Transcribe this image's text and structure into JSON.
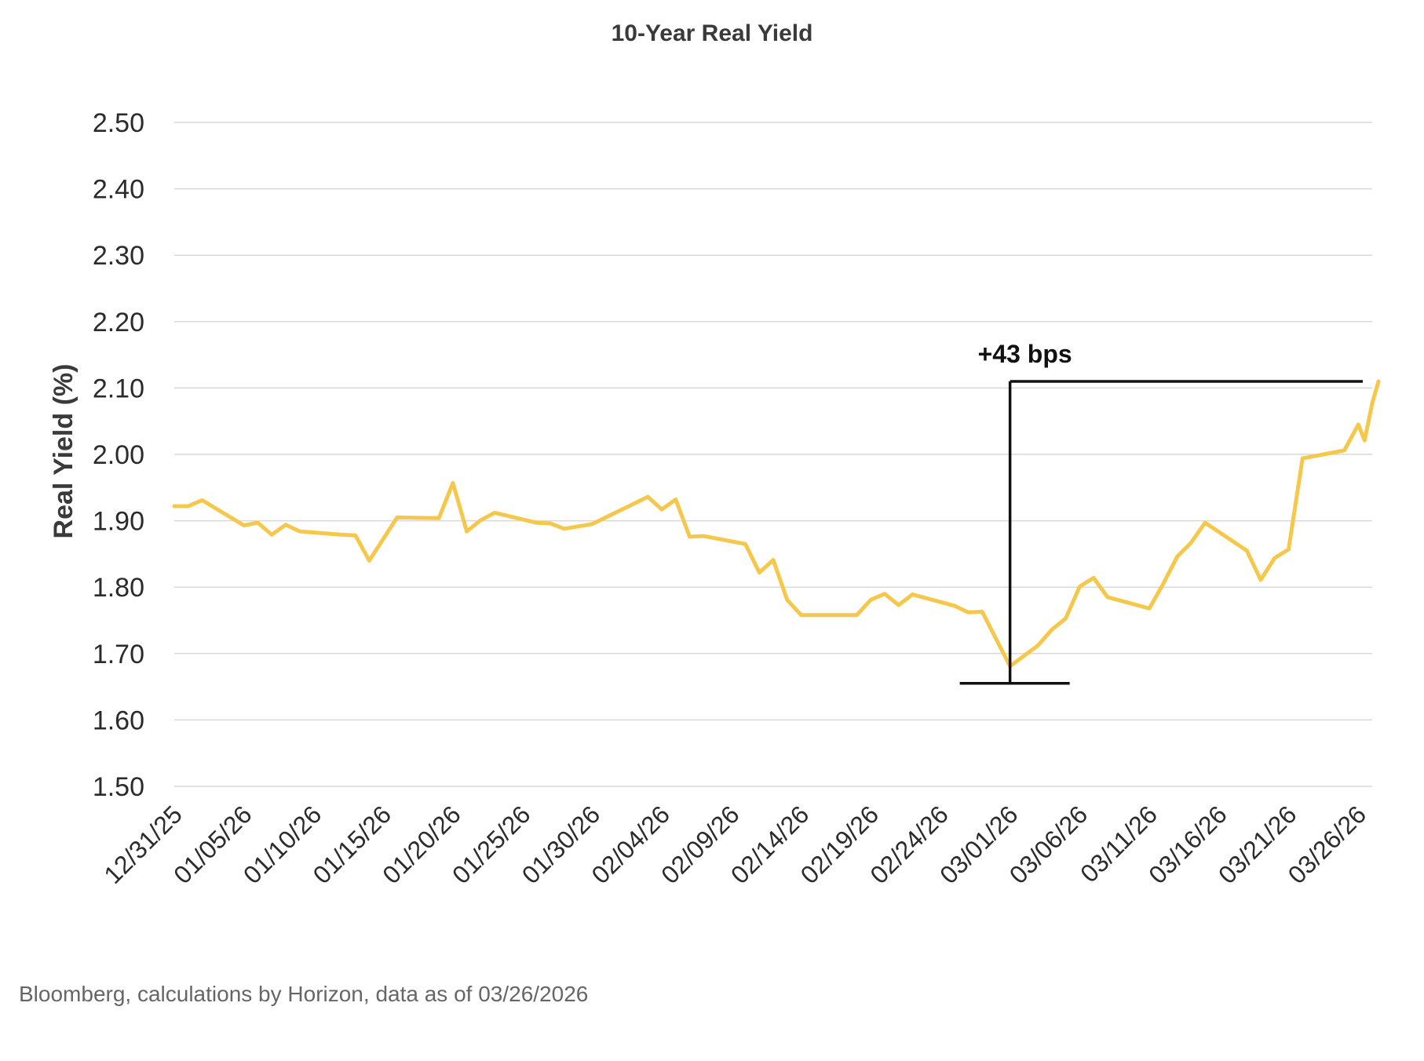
{
  "chart_data": {
    "type": "line",
    "title": "10-Year Real Yield",
    "xlabel": "",
    "ylabel": "Real Yield (%)",
    "ylim": [
      1.5,
      2.5
    ],
    "yticks": [
      "1.50",
      "1.60",
      "1.70",
      "1.80",
      "1.90",
      "2.00",
      "2.10",
      "2.20",
      "2.30",
      "2.40",
      "2.50"
    ],
    "x_tick_labels": [
      "12/31/25",
      "01/05/26",
      "01/10/26",
      "01/15/26",
      "01/20/26",
      "01/25/26",
      "01/30/26",
      "02/04/26",
      "02/09/26",
      "02/14/26",
      "02/19/26",
      "02/24/26",
      "03/01/26",
      "03/06/26",
      "03/11/26",
      "03/16/26",
      "03/21/26",
      "03/26/26"
    ],
    "x_start": "12/31/25",
    "x_end": "03/27/26",
    "grid": true,
    "series": [
      {
        "color": "#f5c84c",
        "points": [
          [
            "12/31/25",
            1.922
          ],
          [
            "01/01/26",
            1.922
          ],
          [
            "01/02/26",
            1.931
          ],
          [
            "01/05/26",
            1.893
          ],
          [
            "01/06/26",
            1.897
          ],
          [
            "01/07/26",
            1.879
          ],
          [
            "01/08/26",
            1.894
          ],
          [
            "01/09/26",
            1.884
          ],
          [
            "01/12/26",
            1.879
          ],
          [
            "01/13/26",
            1.878
          ],
          [
            "01/14/26",
            1.84
          ],
          [
            "01/16/26",
            1.905
          ],
          [
            "01/19/26",
            1.904
          ],
          [
            "01/20/26",
            1.957
          ],
          [
            "01/21/26",
            1.884
          ],
          [
            "01/22/26",
            1.901
          ],
          [
            "01/23/26",
            1.912
          ],
          [
            "01/26/26",
            1.897
          ],
          [
            "01/27/26",
            1.896
          ],
          [
            "01/28/26",
            1.888
          ],
          [
            "01/30/26",
            1.895
          ],
          [
            "02/03/26",
            1.936
          ],
          [
            "02/04/26",
            1.917
          ],
          [
            "02/05/26",
            1.932
          ],
          [
            "02/06/26",
            1.876
          ],
          [
            "02/07/26",
            1.877
          ],
          [
            "02/10/26",
            1.865
          ],
          [
            "02/11/26",
            1.822
          ],
          [
            "02/12/26",
            1.841
          ],
          [
            "02/13/26",
            1.781
          ],
          [
            "02/14/26",
            1.758
          ],
          [
            "02/17/26",
            1.758
          ],
          [
            "02/18/26",
            1.758
          ],
          [
            "02/19/26",
            1.781
          ],
          [
            "02/20/26",
            1.79
          ],
          [
            "02/21/26",
            1.773
          ],
          [
            "02/22/26",
            1.789
          ],
          [
            "02/25/26",
            1.772
          ],
          [
            "02/26/26",
            1.762
          ],
          [
            "02/27/26",
            1.763
          ],
          [
            "02/28/26",
            1.722
          ],
          [
            "03/01/26",
            1.681
          ],
          [
            "03/03/26",
            1.712
          ],
          [
            "03/04/26",
            1.736
          ],
          [
            "03/05/26",
            1.753
          ],
          [
            "03/06/26",
            1.801
          ],
          [
            "03/07/26",
            1.814
          ],
          [
            "03/08/26",
            1.785
          ],
          [
            "03/11/26",
            1.768
          ],
          [
            "03/12/26",
            1.805
          ],
          [
            "03/13/26",
            1.846
          ],
          [
            "03/14/26",
            1.867
          ],
          [
            "03/15/26",
            1.897
          ],
          [
            "03/18/26",
            1.855
          ],
          [
            "03/19/26",
            1.811
          ],
          [
            "03/20/26",
            1.844
          ],
          [
            "03/21/26",
            1.857
          ],
          [
            "03/22/26",
            1.994
          ],
          [
            "03/25/26",
            2.006
          ],
          [
            "03/26/26",
            2.045
          ],
          [
            "03/26/26",
            2.021
          ],
          [
            "03/27/26",
            2.077
          ],
          [
            "03/27/26",
            2.11
          ]
        ]
      }
    ],
    "annotation": {
      "text": "+43 bps",
      "low_date": "03/01/26",
      "low_value": 1.68,
      "high_value": 2.11
    }
  },
  "source_note": "Bloomberg, calculations by Horizon, data as of 03/26/2026"
}
